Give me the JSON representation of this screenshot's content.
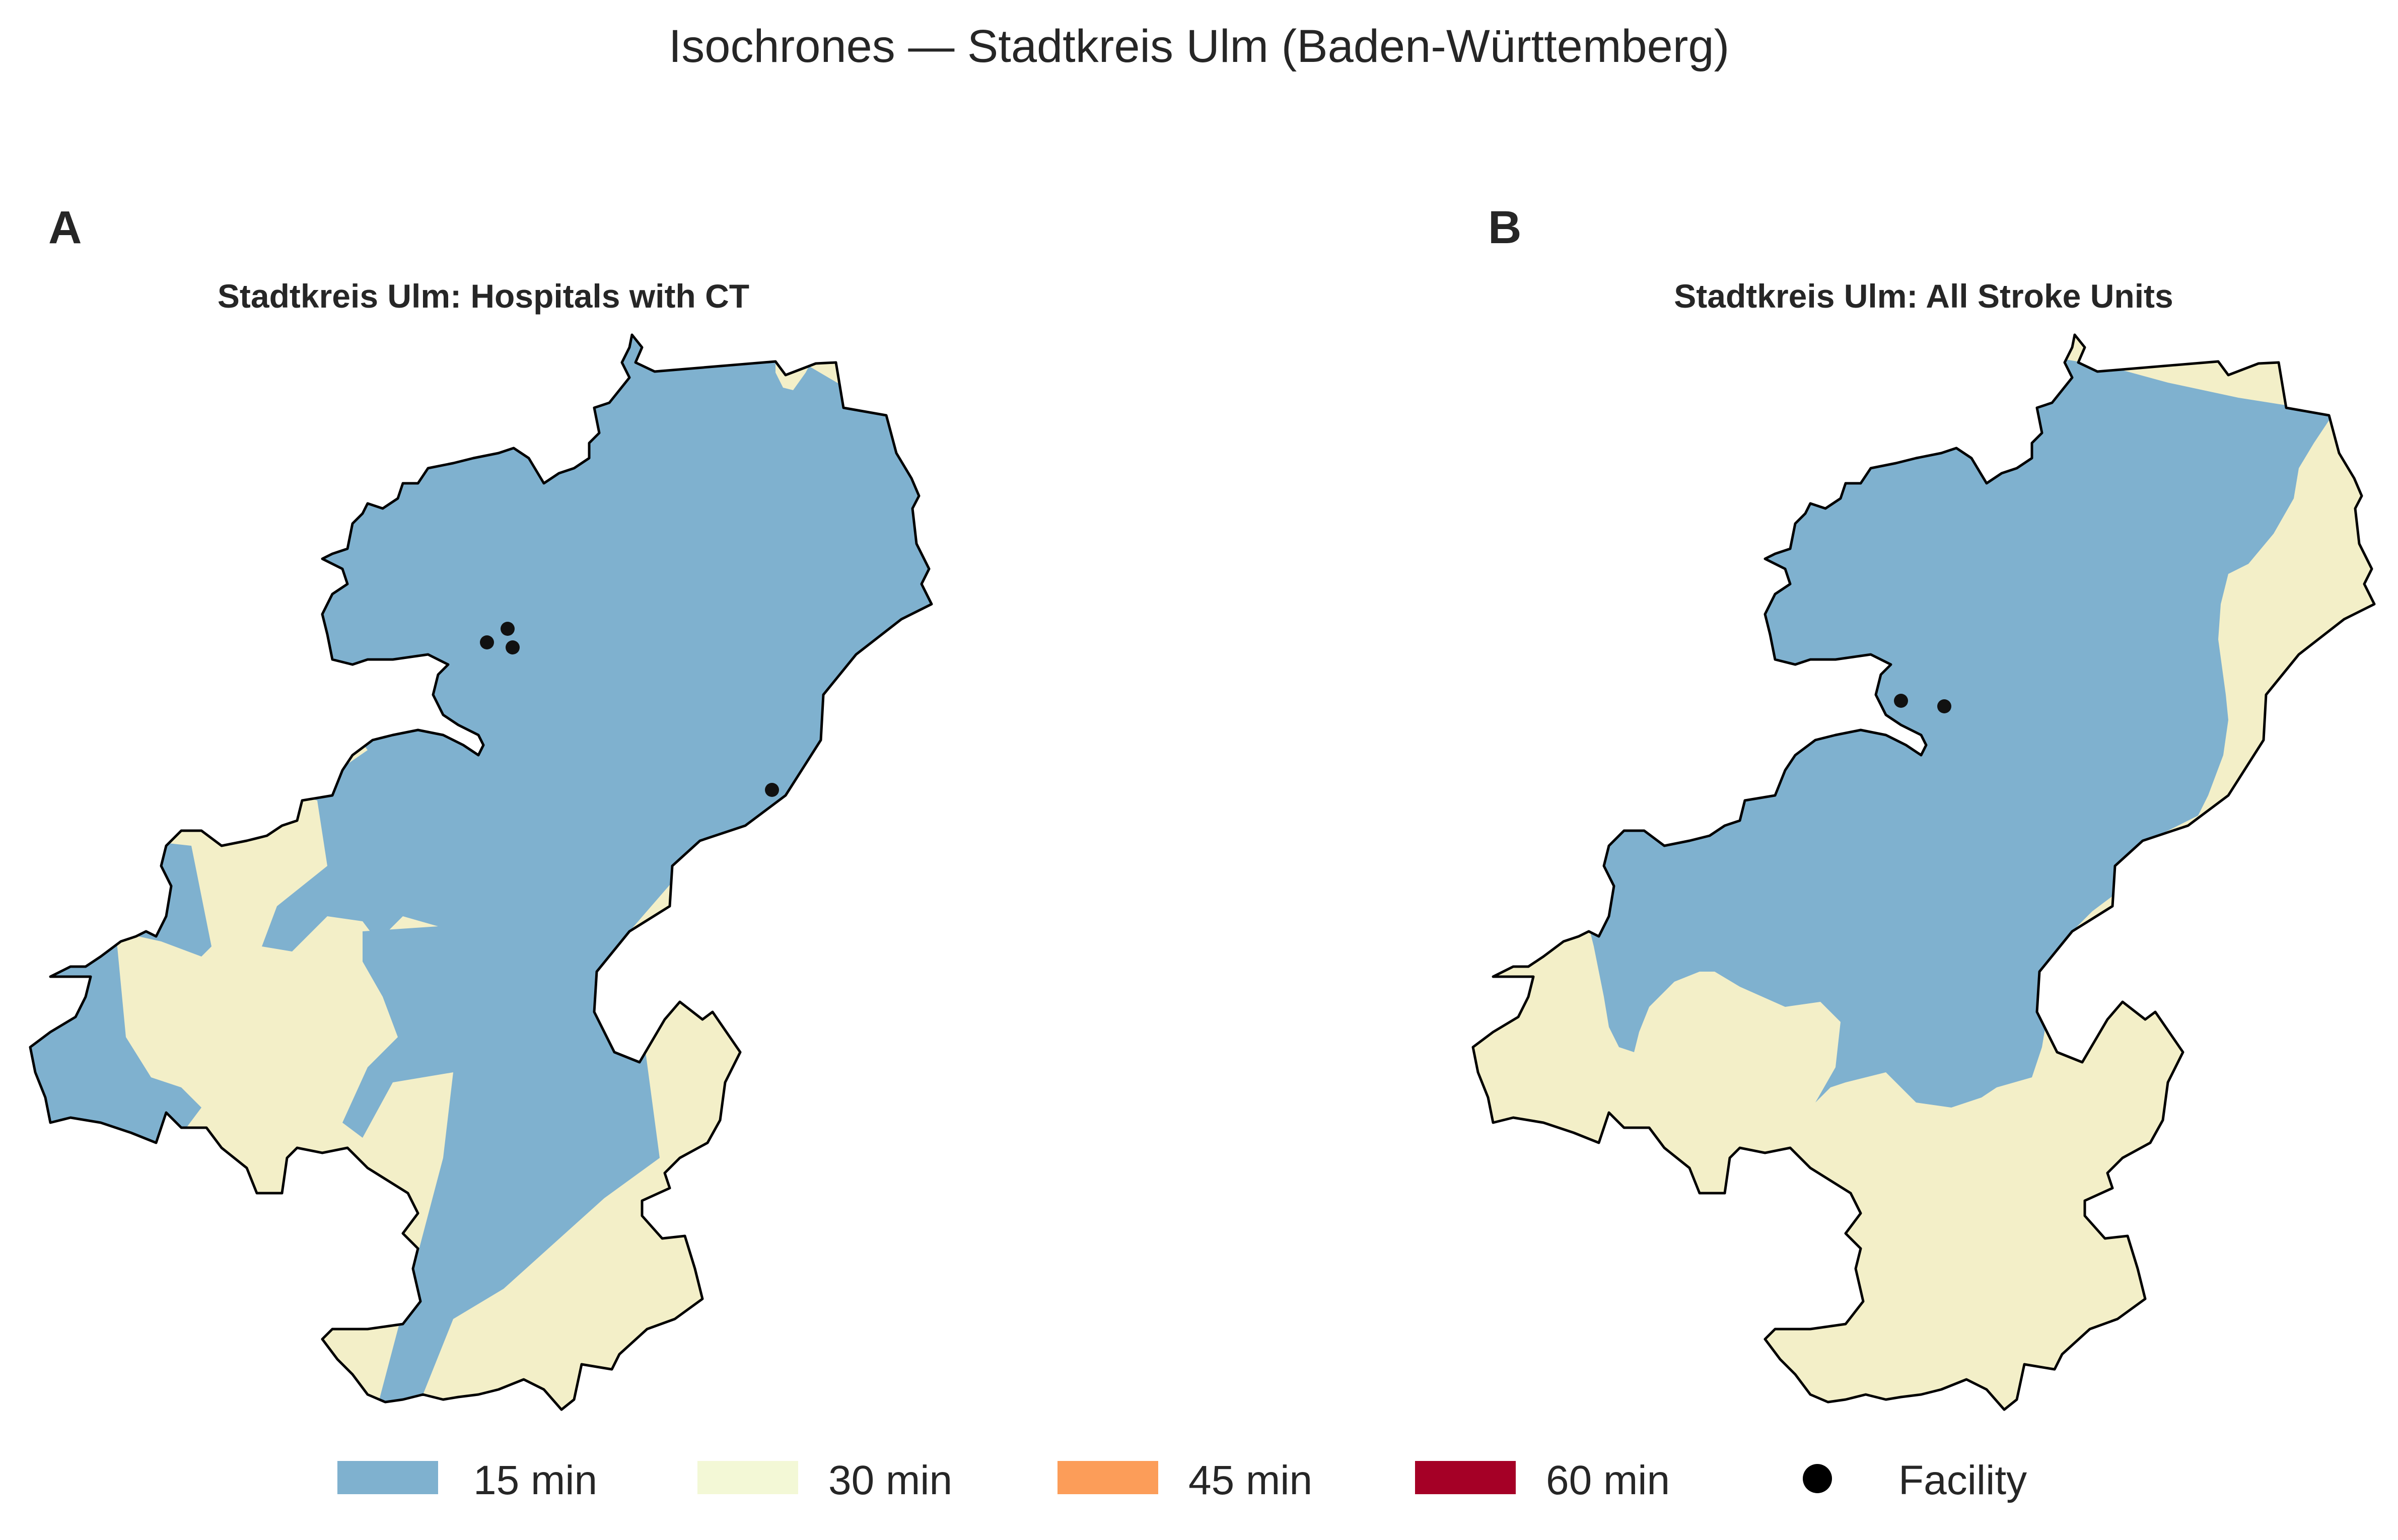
{
  "title": "Isochrones — Stadtkreis Ulm (Baden-Württemberg)",
  "panels": [
    {
      "letter": "A",
      "title": "Stadtkreis Ulm: Hospitals with CT",
      "facility_count": 4
    },
    {
      "letter": "B",
      "title": "Stadtkreis Ulm: All Stroke Units",
      "facility_count": 2
    }
  ],
  "legend": [
    {
      "label": "15 min",
      "color": "#7fb1cf",
      "kind": "swatch"
    },
    {
      "label": "30 min",
      "color": "#f3f8d6",
      "kind": "swatch"
    },
    {
      "label": "45 min",
      "color": "#fc9d59",
      "kind": "swatch"
    },
    {
      "label": "60 min",
      "color": "#a50026",
      "kind": "swatch"
    },
    {
      "label": "Facility",
      "color": "#000000",
      "kind": "dot"
    }
  ]
}
